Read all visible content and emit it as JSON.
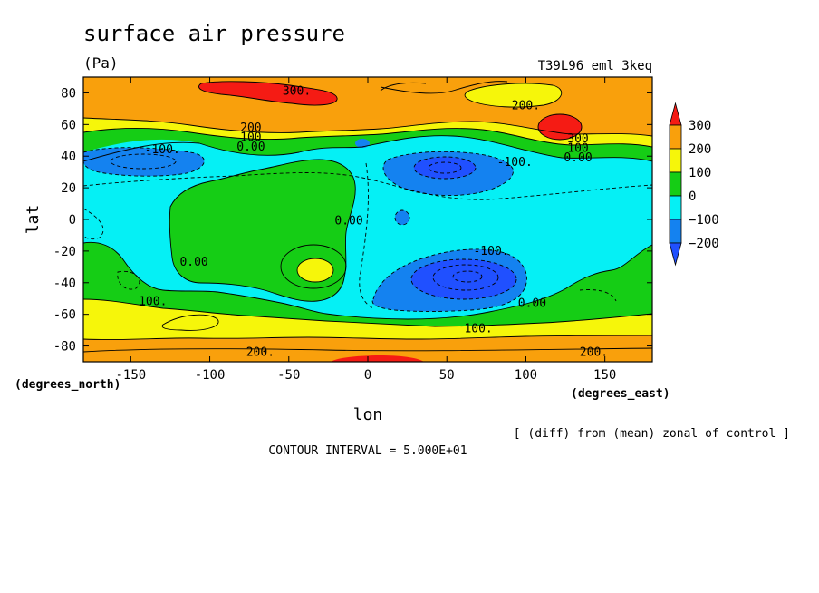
{
  "chart_data": {
    "type": "heatmap",
    "subtype": "filled-contour-map",
    "title": "surface air pressure",
    "units": "(Pa)",
    "experiment": "T39L96_eml_3keq",
    "xlabel": "lon",
    "ylabel": "lat",
    "x_units": "(degrees_east)",
    "y_units": "(degrees_north)",
    "xlim": [
      -180,
      180
    ],
    "ylim": [
      -90,
      90
    ],
    "x_ticks": [
      -150,
      -100,
      -50,
      0,
      50,
      100,
      150
    ],
    "y_ticks": [
      80,
      60,
      40,
      20,
      0,
      -20,
      -40,
      -60,
      -80
    ],
    "note": "[ (diff) from (mean) zonal of control ]",
    "contour_interval": "CONTOUR INTERVAL = 5.000E+01",
    "colorbar": {
      "labels": [
        "300",
        "200",
        "100",
        "0",
        "−100",
        "−200"
      ],
      "levels": [
        300,
        200,
        100,
        0,
        -100,
        -200
      ],
      "colors": [
        "#f51b14",
        "#f9a00c",
        "#f6f60a",
        "#15cd15",
        "#05f0f5",
        "#1482f0",
        "#2050ff"
      ]
    },
    "colors": {
      "red": "#f51b14",
      "orange": "#f9a00c",
      "yellow": "#f6f60a",
      "green": "#15cd15",
      "cyan": "#05f0f5",
      "blue": "#1482f0",
      "darkblue": "#2050ff"
    },
    "contour_labels": [
      {
        "text": "300.",
        "lon": -45,
        "lat": 81
      },
      {
        "text": "200.",
        "lon": 100,
        "lat": 72
      },
      {
        "text": "200",
        "lon": -74,
        "lat": 58
      },
      {
        "text": "100",
        "lon": -74,
        "lat": 52
      },
      {
        "text": "0.00",
        "lon": -74,
        "lat": 46
      },
      {
        "text": "-100.",
        "lon": -130,
        "lat": 44
      },
      {
        "text": "-100.",
        "lon": 93,
        "lat": 36
      },
      {
        "text": "300",
        "lon": 133,
        "lat": 51
      },
      {
        "text": "100",
        "lon": 133,
        "lat": 45
      },
      {
        "text": "0.00",
        "lon": 133,
        "lat": 39
      },
      {
        "text": "0.00",
        "lon": -12,
        "lat": -1
      },
      {
        "text": "-100.",
        "lon": 78,
        "lat": -20
      },
      {
        "text": "0.00",
        "lon": -110,
        "lat": -27
      },
      {
        "text": "0.00",
        "lon": 104,
        "lat": -53
      },
      {
        "text": "100.",
        "lon": -136,
        "lat": -52
      },
      {
        "text": "100.",
        "lon": 70,
        "lat": -69
      },
      {
        "text": "200.",
        "lon": -68,
        "lat": -84
      },
      {
        "text": "200.",
        "lon": 143,
        "lat": -84
      }
    ]
  }
}
